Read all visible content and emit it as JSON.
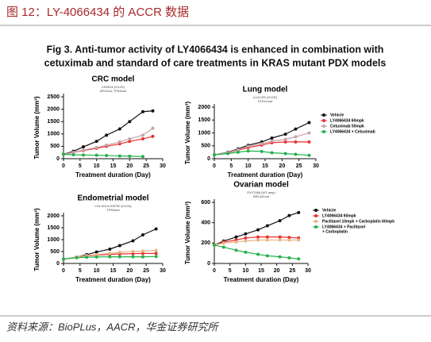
{
  "header": {
    "title": "图 12：LY-4066434 的 ACCR 数据"
  },
  "figure_title": [
    "Fig 3. Anti-tumor activity of LY4066434 is enhanced in combination with",
    "cetuximab and standard of care treatments in KRAS mutant PDX models"
  ],
  "source": "资料来源：BioPLus，AACR，华金证券研究所",
  "chart_data": [
    {
      "type": "line",
      "title": "CRC model",
      "subtitle": [
        "CR0026 (G12D)",
        "APCmut; TP53mut"
      ],
      "x_label": "Treatment duration (Day)",
      "y_label": "Tumor Volume (mm³)",
      "x": [
        0,
        3,
        6,
        10,
        13,
        17,
        20,
        24,
        27
      ],
      "xlim": [
        0,
        30
      ],
      "xticks": [
        0,
        5,
        10,
        15,
        20,
        25,
        30
      ],
      "ylim": [
        0,
        2500
      ],
      "yticks": [
        0,
        500,
        1000,
        1500,
        2000,
        2500
      ],
      "series": [
        {
          "color": "#111111",
          "values": [
            180,
            300,
            480,
            700,
            950,
            1200,
            1500,
            1900,
            1930
          ]
        },
        {
          "color": "#e8312f",
          "values": [
            180,
            250,
            330,
            420,
            500,
            600,
            700,
            800,
            900
          ]
        },
        {
          "color": "#c9a3a8",
          "values": [
            180,
            260,
            350,
            450,
            550,
            680,
            800,
            950,
            1230
          ]
        },
        {
          "color": "#22b14c",
          "values": [
            180,
            160,
            150,
            140,
            130,
            110,
            100,
            90,
            null
          ]
        }
      ]
    },
    {
      "type": "line",
      "title": "Lung model",
      "subtitle": [
        "LU11780 (G12D)",
        "STK11mut"
      ],
      "x_label": "Treatment duration (Day)",
      "y_label": "Tumor Volume (mm³)",
      "x": [
        0,
        4,
        7,
        10,
        14,
        17,
        21,
        24,
        28
      ],
      "xlim": [
        0,
        30
      ],
      "xticks": [
        0,
        5,
        10,
        15,
        20,
        25,
        30
      ],
      "ylim": [
        0,
        2000
      ],
      "yticks": [
        0,
        500,
        1000,
        1500,
        2000
      ],
      "legend": "right",
      "series": [
        {
          "name": "Vehicle",
          "color": "#111111",
          "values": [
            150,
            250,
            380,
            520,
            650,
            800,
            950,
            1150,
            1400
          ]
        },
        {
          "name": "LY4066434 60mpk",
          "color": "#e8312f",
          "values": [
            150,
            230,
            330,
            430,
            530,
            620,
            650,
            650,
            650
          ]
        },
        {
          "name": "Cetuximab 50mpk",
          "color": "#c9a3a8",
          "values": [
            150,
            240,
            350,
            480,
            580,
            680,
            750,
            850,
            1000
          ]
        },
        {
          "name": "LY4066434 + Cetuximab",
          "color": "#22b14c",
          "values": [
            150,
            200,
            250,
            300,
            280,
            230,
            200,
            170,
            130
          ]
        }
      ]
    },
    {
      "type": "line",
      "title": "Endometrial model",
      "subtitle": [
        "LD1-0014-200750 (G12A)",
        "TP53mut"
      ],
      "x_label": "Treatment duration (Day)",
      "y_label": "Tumor Volume (mm³)",
      "x": [
        0,
        4,
        7,
        10,
        14,
        17,
        21,
        24,
        28
      ],
      "xlim": [
        0,
        30
      ],
      "xticks": [
        0,
        5,
        10,
        15,
        20,
        25,
        30
      ],
      "ylim": [
        0,
        2000
      ],
      "yticks": [
        0,
        500,
        1000,
        1500,
        2000
      ],
      "series": [
        {
          "color": "#111111",
          "values": [
            180,
            270,
            370,
            480,
            600,
            750,
            950,
            1200,
            1450
          ]
        },
        {
          "color": "#e8312f",
          "values": [
            180,
            260,
            310,
            350,
            380,
            400,
            410,
            420,
            420
          ]
        },
        {
          "color": "#e8b48a",
          "values": [
            180,
            270,
            330,
            370,
            420,
            470,
            500,
            520,
            550
          ]
        },
        {
          "color": "#22b14c",
          "values": [
            180,
            240,
            260,
            270,
            280,
            280,
            280,
            280,
            290
          ]
        }
      ]
    },
    {
      "type": "line",
      "title": "Ovarian model",
      "subtitle": [
        "OV17066 (WT amp)",
        "BRCA2mut"
      ],
      "x_label": "Treatment duration (Day)",
      "y_label": "Tumor Volume (mm³)",
      "x": [
        0,
        3,
        7,
        10,
        14,
        17,
        21,
        24,
        27
      ],
      "xlim": [
        0,
        30
      ],
      "xticks": [
        0,
        5,
        10,
        15,
        20,
        25,
        30
      ],
      "ylim": [
        0,
        600
      ],
      "yticks": [
        0,
        200,
        400,
        600
      ],
      "legend": "right",
      "series": [
        {
          "name": "Vehicle",
          "color": "#111111",
          "values": [
            180,
            220,
            260,
            290,
            330,
            370,
            420,
            470,
            500
          ]
        },
        {
          "name": "LY4066434 60mpk",
          "color": "#e8312f",
          "values": [
            180,
            210,
            230,
            250,
            260,
            260,
            260,
            255,
            250
          ]
        },
        {
          "name": "Paclitaxel 10mpk + Carboplatin 60mpk",
          "color": "#e8b48a",
          "values": [
            180,
            200,
            210,
            220,
            230,
            230,
            230,
            230,
            230
          ]
        },
        {
          "name": [
            "LY4066434 + Paclitaxel",
            "+ Carboplatin"
          ],
          "color": "#22b14c",
          "values": [
            180,
            160,
            130,
            110,
            90,
            75,
            65,
            55,
            45
          ]
        }
      ]
    }
  ]
}
